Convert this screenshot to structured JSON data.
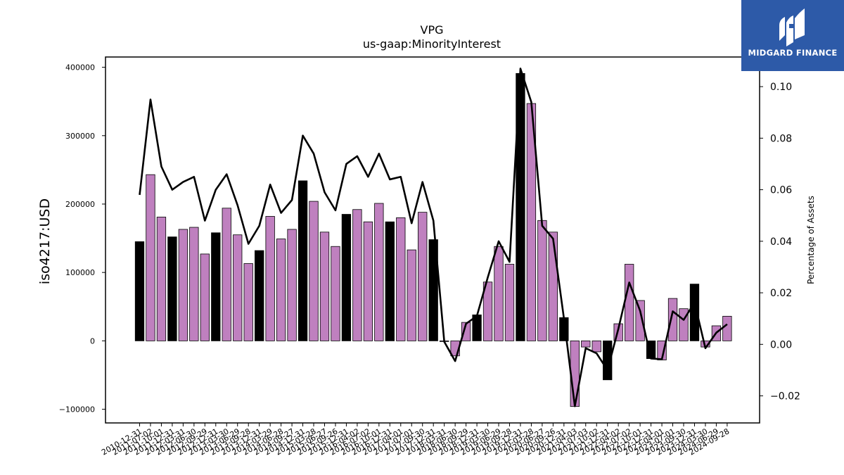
{
  "logo": {
    "text": "MIDGARD FINANCE",
    "icon": "midgard-logo-icon"
  },
  "chart_data": {
    "type": "bar",
    "title": "VPG",
    "subtitle": "us-gaap:MinorityInterest",
    "ylabel": "iso4217:USD",
    "y2label": "Percentage of Assets",
    "ylim": [
      -120000,
      415000
    ],
    "y2lim": [
      -0.0305,
      0.1115
    ],
    "yticks": [
      -100000,
      0,
      100000,
      200000,
      300000,
      400000
    ],
    "y2ticks": [
      -0.02,
      0.0,
      0.02,
      0.04,
      0.06,
      0.08,
      0.1
    ],
    "y2tick_labels": [
      "−0.02",
      "0.00",
      "0.02",
      "0.04",
      "0.06",
      "0.08",
      "0.10"
    ],
    "colors": {
      "annual": "#000000",
      "quarterly": "#bf80bf",
      "line": "#000000"
    },
    "categories": [
      "2010-12-31",
      "2011-07-02",
      "2011-10-01",
      "2011-12-31",
      "2012-03-31",
      "2012-06-30",
      "2012-09-29",
      "2012-12-31",
      "2013-03-30",
      "2013-06-29",
      "2013-09-28",
      "2013-12-31",
      "2014-03-29",
      "2014-06-28",
      "2014-09-27",
      "2014-12-31",
      "2015-03-28",
      "2015-06-27",
      "2015-09-26",
      "2015-12-31",
      "2016-04-02",
      "2016-07-02",
      "2016-10-01",
      "2016-12-31",
      "2017-04-01",
      "2017-07-01",
      "2017-09-30",
      "2017-12-31",
      "2018-03-31",
      "2018-06-30",
      "2018-09-29",
      "2018-12-31",
      "2019-03-30",
      "2019-06-29",
      "2019-09-28",
      "2019-12-31",
      "2020-03-28",
      "2020-06-27",
      "2020-09-26",
      "2020-12-31",
      "2021-04-03",
      "2021-07-03",
      "2021-10-02",
      "2021-12-31",
      "2022-04-02",
      "2022-07-02",
      "2022-10-01",
      "2022-12-31",
      "2023-04-01",
      "2023-07-01",
      "2023-09-30",
      "2023-12-31",
      "2024-03-30",
      "2024-06-29",
      "2024-09-28"
    ],
    "series": [
      {
        "kind": "bar",
        "values": [
          145000,
          243000,
          181000,
          152000,
          163000,
          166000,
          127000,
          158000,
          194000,
          155000,
          113000,
          132000,
          182000,
          149000,
          163000,
          234000,
          204000,
          159000,
          138000,
          185000,
          192000,
          174000,
          201000,
          174000,
          180000,
          133000,
          188000,
          148000,
          -1000,
          -22000,
          27000,
          38000,
          86000,
          138000,
          112000,
          391000,
          347000,
          176000,
          159000,
          34000,
          -96000,
          -9000,
          -16000,
          -57000,
          25000,
          112000,
          59000,
          -26000,
          -28000,
          62000,
          47000,
          83000,
          -9000,
          22000,
          36000
        ],
        "period": [
          "annual",
          "quarterly",
          "quarterly",
          "annual",
          "quarterly",
          "quarterly",
          "quarterly",
          "annual",
          "quarterly",
          "quarterly",
          "quarterly",
          "annual",
          "quarterly",
          "quarterly",
          "quarterly",
          "annual",
          "quarterly",
          "quarterly",
          "quarterly",
          "annual",
          "quarterly",
          "quarterly",
          "quarterly",
          "annual",
          "quarterly",
          "quarterly",
          "quarterly",
          "annual",
          "quarterly",
          "quarterly",
          "quarterly",
          "annual",
          "quarterly",
          "quarterly",
          "quarterly",
          "annual",
          "quarterly",
          "quarterly",
          "quarterly",
          "annual",
          "quarterly",
          "quarterly",
          "quarterly",
          "annual",
          "quarterly",
          "quarterly",
          "quarterly",
          "annual",
          "quarterly",
          "quarterly",
          "quarterly",
          "annual",
          "quarterly",
          "quarterly",
          "quarterly"
        ]
      },
      {
        "kind": "line",
        "axis": "right",
        "values": [
          0.058,
          0.095,
          0.069,
          0.06,
          0.063,
          0.065,
          0.048,
          0.06,
          0.066,
          0.054,
          0.039,
          0.046,
          0.062,
          0.051,
          0.056,
          0.081,
          0.074,
          0.059,
          0.052,
          0.07,
          0.073,
          0.065,
          0.074,
          0.064,
          0.065,
          0.047,
          0.063,
          0.048,
          0.001,
          -0.0065,
          0.008,
          0.011,
          0.026,
          0.04,
          0.032,
          0.107,
          0.094,
          0.046,
          0.041,
          0.01,
          -0.024,
          -0.0015,
          -0.0035,
          -0.01,
          0.006,
          0.024,
          0.013,
          -0.0055,
          -0.0058,
          0.0128,
          0.0095,
          0.0162,
          -0.0015,
          0.0045,
          0.0078
        ]
      }
    ]
  }
}
